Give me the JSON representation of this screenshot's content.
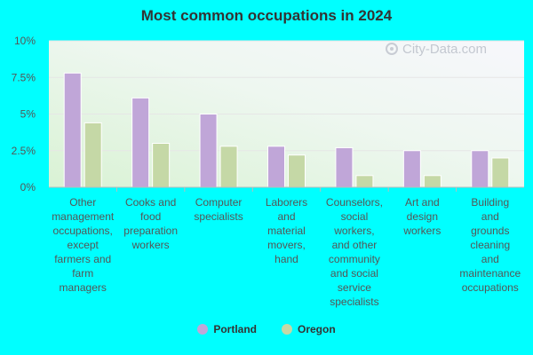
{
  "chart_data": {
    "type": "bar",
    "title": "Most common occupations in 2024",
    "categories": [
      [
        "Other",
        "management",
        "occupations,",
        "except",
        "farmers and",
        "farm",
        "managers"
      ],
      [
        "Cooks and",
        "food",
        "preparation",
        "workers"
      ],
      [
        "Computer",
        "specialists"
      ],
      [
        "Laborers",
        "and",
        "material",
        "movers,",
        "hand"
      ],
      [
        "Counselors,",
        "social",
        "workers,",
        "and other",
        "community",
        "and social",
        "service",
        "specialists"
      ],
      [
        "Art and",
        "design",
        "workers"
      ],
      [
        "Building",
        "and",
        "grounds",
        "cleaning",
        "and",
        "maintenance",
        "occupations"
      ]
    ],
    "series": [
      {
        "name": "Portland",
        "color": "#c0a6d8",
        "values": [
          7.8,
          6.1,
          5.0,
          2.8,
          2.7,
          2.5,
          2.5
        ]
      },
      {
        "name": "Oregon",
        "color": "#c5d8a6",
        "values": [
          4.4,
          3.0,
          2.8,
          2.2,
          0.8,
          0.8,
          2.0
        ]
      }
    ],
    "y_ticks": [
      "0%",
      "2.5%",
      "5%",
      "7.5%",
      "10%"
    ],
    "ylim": [
      0,
      10
    ],
    "grid": true,
    "legend_position": "bottom"
  },
  "watermark": {
    "text": "City-Data.com",
    "icon": "search-icon"
  }
}
